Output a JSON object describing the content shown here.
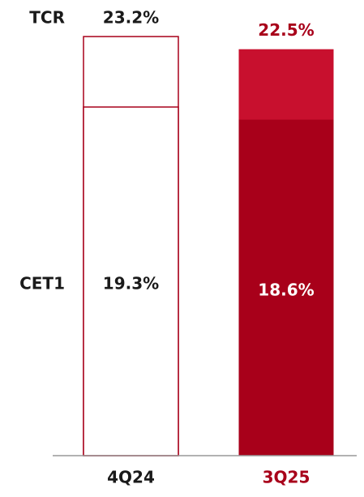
{
  "chart_data": {
    "type": "bar",
    "overlap": true,
    "categories": [
      "4Q24",
      "3Q25"
    ],
    "category_colors": [
      "#1a1a1a",
      "#a8001a"
    ],
    "series": [
      {
        "name": "TCR",
        "values": [
          23.2,
          22.5
        ],
        "value_labels": [
          "23.2%",
          "22.5%"
        ],
        "colors": [
          "#ffffff",
          "#c8102e"
        ],
        "label_colors": [
          "#1a1a1a",
          "#a8001a"
        ]
      },
      {
        "name": "CET1",
        "values": [
          19.3,
          18.6
        ],
        "value_labels": [
          "19.3%",
          "18.6%"
        ],
        "colors": [
          "#ffffff",
          "#a8001a"
        ],
        "label_colors": [
          "#1a1a1a",
          "#ffffff"
        ]
      }
    ],
    "edge_color": "#a8001a",
    "ylim": [
      0,
      25
    ]
  }
}
